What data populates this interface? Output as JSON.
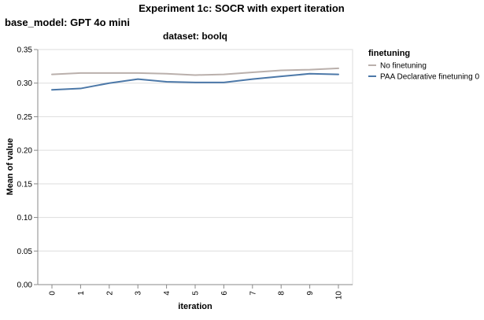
{
  "chart_data": {
    "type": "line",
    "title": "Experiment 1c: SOCR with expert iteration",
    "facet_row_title": "base_model: GPT 4o mini",
    "facet_col_title": "dataset: boolq",
    "xlabel": "iteration",
    "ylabel": "Mean of value",
    "x": [
      0,
      1,
      2,
      3,
      4,
      5,
      6,
      7,
      8,
      9,
      10
    ],
    "x_tick_labels": [
      "0",
      "1",
      "2",
      "3",
      "4",
      "5",
      "6",
      "7",
      "8",
      "9",
      "10"
    ],
    "ylim": [
      0,
      0.35
    ],
    "y_ticks": [
      0.0,
      0.05,
      0.1,
      0.15,
      0.2,
      0.25,
      0.3,
      0.35
    ],
    "y_tick_labels": [
      "0.00",
      "0.05",
      "0.10",
      "0.15",
      "0.20",
      "0.25",
      "0.30",
      "0.35"
    ],
    "grid": true,
    "legend": {
      "title": "finetuning",
      "placement": "right"
    },
    "series": [
      {
        "name": "No finetuning",
        "color": "#bab0ac",
        "values": [
          0.313,
          0.315,
          0.315,
          0.315,
          0.314,
          0.312,
          0.313,
          0.316,
          0.319,
          0.32,
          0.322
        ]
      },
      {
        "name": "PAA Declarative finetuning 0",
        "color": "#4c78a8",
        "values": [
          0.29,
          0.292,
          0.3,
          0.306,
          0.302,
          0.301,
          0.301,
          0.306,
          0.31,
          0.314,
          0.313
        ]
      }
    ]
  }
}
